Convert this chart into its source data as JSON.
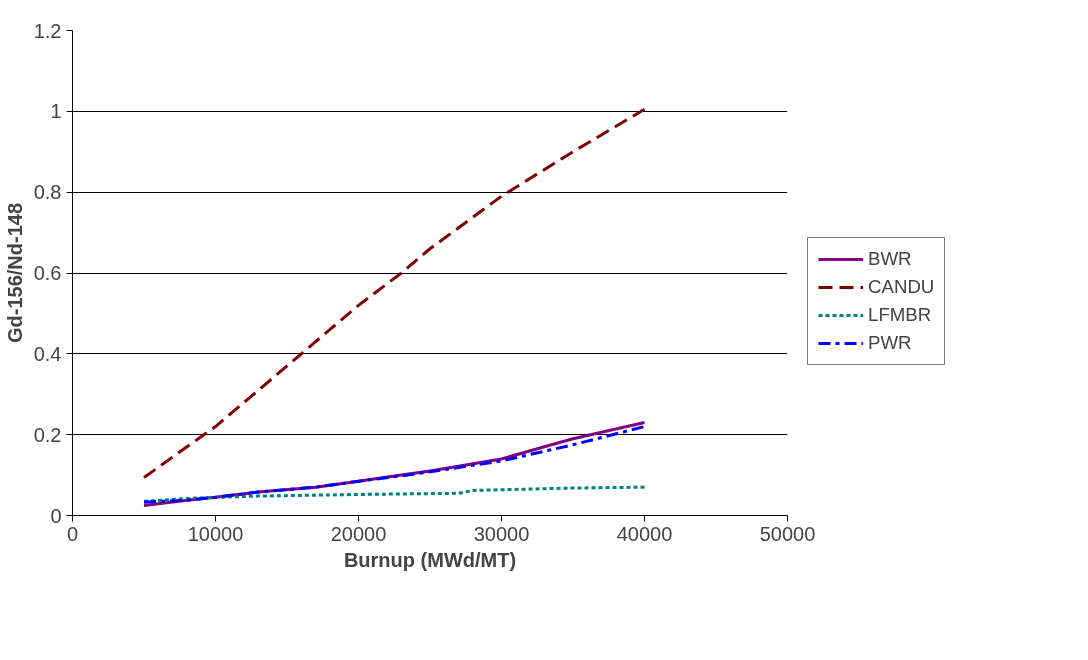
{
  "chart_data": {
    "type": "line",
    "xlabel": "Burnup (MWd/MT)",
    "ylabel": "Gd-156/Nd-148",
    "xlim": [
      0,
      50000
    ],
    "xticks": [
      0,
      10000,
      20000,
      30000,
      40000,
      50000
    ],
    "ylim": [
      0,
      1.2
    ],
    "yticks": [
      0,
      0.2,
      0.4,
      0.6,
      0.8,
      1,
      1.2
    ],
    "grid": "y",
    "legend": "right",
    "marker": "none",
    "series": [
      {
        "name": "BWR",
        "color": "#800080",
        "line_style": "solid",
        "x": [
          5000,
          8000,
          10000,
          13000,
          17000,
          20000,
          23000,
          25000,
          30000,
          33000,
          35000,
          40000
        ],
        "values": [
          0.025,
          0.038,
          0.045,
          0.058,
          0.07,
          0.085,
          0.1,
          0.11,
          0.14,
          0.17,
          0.19,
          0.23
        ]
      },
      {
        "name": "CANDU",
        "color": "#800000",
        "line_style": "dashed",
        "x": [
          5000,
          8000,
          10000,
          13000,
          17000,
          20000,
          23000,
          25000,
          30000,
          35000,
          40000
        ],
        "values": [
          0.094,
          0.17,
          0.22,
          0.31,
          0.43,
          0.52,
          0.6,
          0.66,
          0.79,
          0.9,
          1.005
        ]
      },
      {
        "name": "LFMBR",
        "color": "#008080",
        "line_style": "dotted",
        "x": [
          5000,
          8000,
          10000,
          13000,
          20000,
          27000,
          28000,
          35000,
          40000
        ],
        "values": [
          0.035,
          0.042,
          0.045,
          0.048,
          0.052,
          0.055,
          0.062,
          0.068,
          0.07
        ]
      },
      {
        "name": "PWR",
        "color": "#0000ff",
        "line_style": "dashdot",
        "x": [
          5000,
          8000,
          10000,
          13000,
          17000,
          20000,
          23000,
          25000,
          30000,
          35000,
          40000
        ],
        "values": [
          0.033,
          0.038,
          0.045,
          0.058,
          0.07,
          0.085,
          0.098,
          0.108,
          0.135,
          0.175,
          0.22
        ]
      }
    ]
  }
}
